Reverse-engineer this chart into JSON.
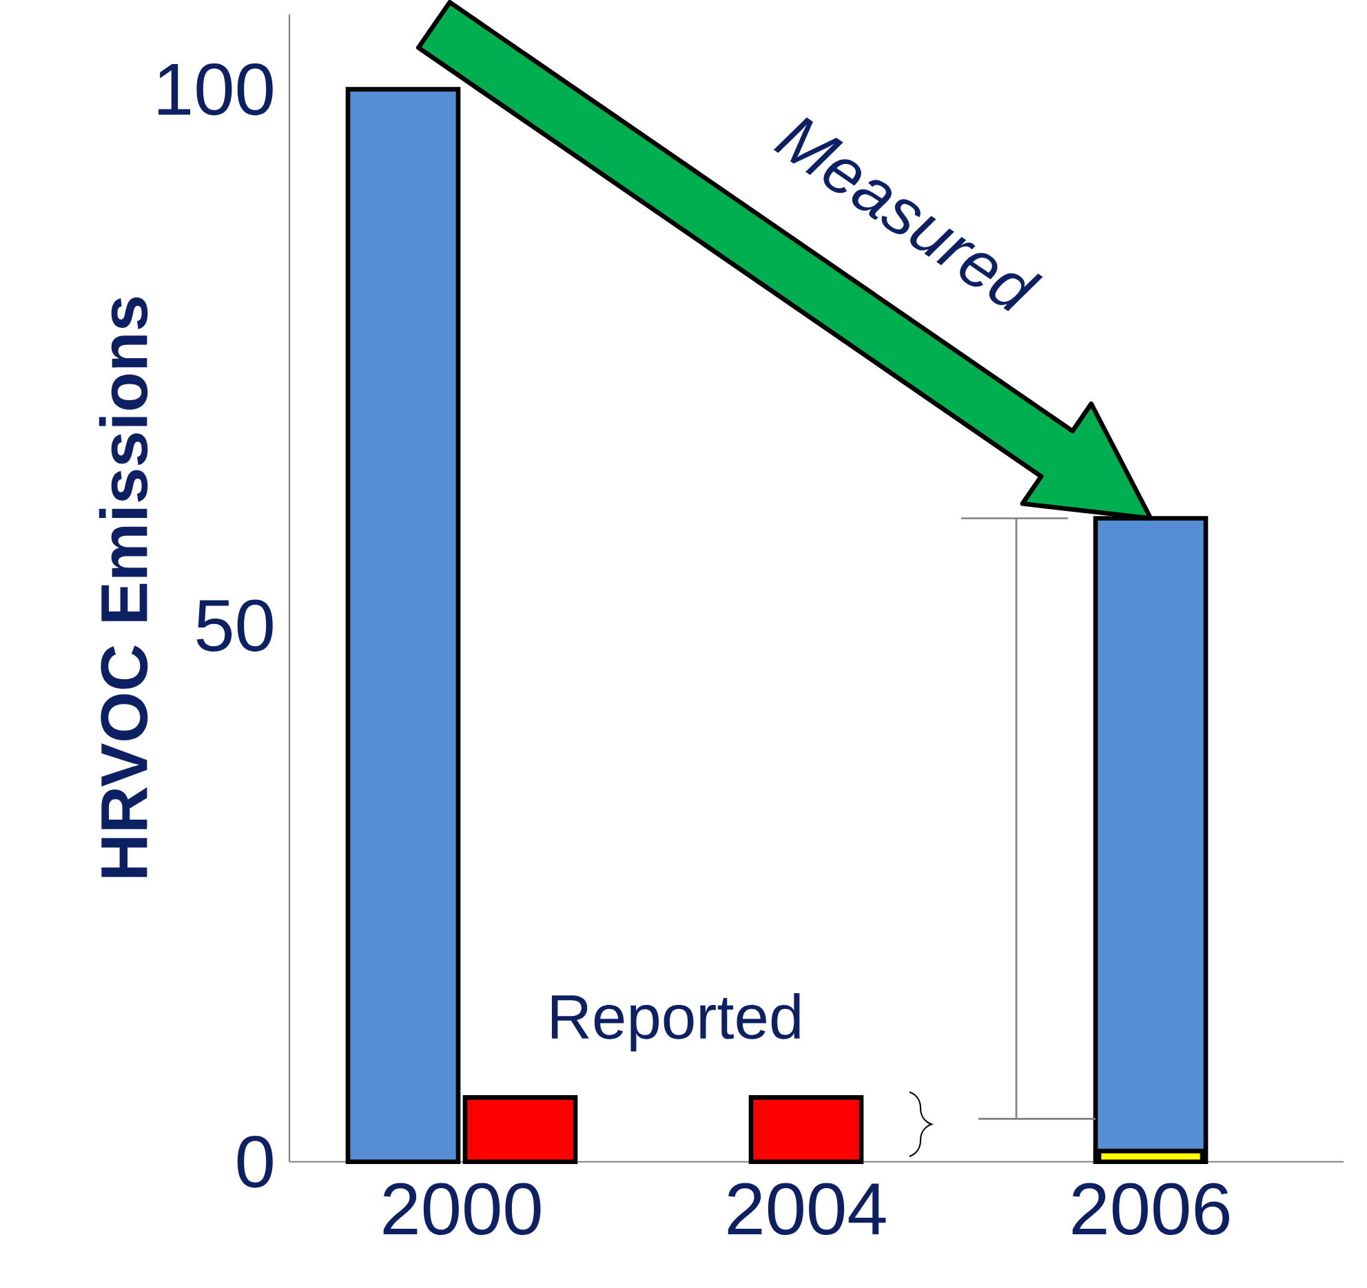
{
  "chart_data": {
    "type": "bar",
    "ylabel": "HRVOC Emissions",
    "categories": [
      "2000",
      "2004",
      "2006"
    ],
    "ylim": [
      0,
      107
    ],
    "yticks": [
      0,
      50,
      100
    ],
    "series": [
      {
        "color": "#558ed5",
        "values": [
          100,
          null,
          60
        ]
      },
      {
        "color": "#ff0000",
        "colors": [
          "#ff0000",
          "#ff0000",
          "#ffff00"
        ],
        "values": [
          6,
          6,
          1
        ]
      }
    ],
    "annotations": [
      "Measured",
      "Reported"
    ]
  }
}
